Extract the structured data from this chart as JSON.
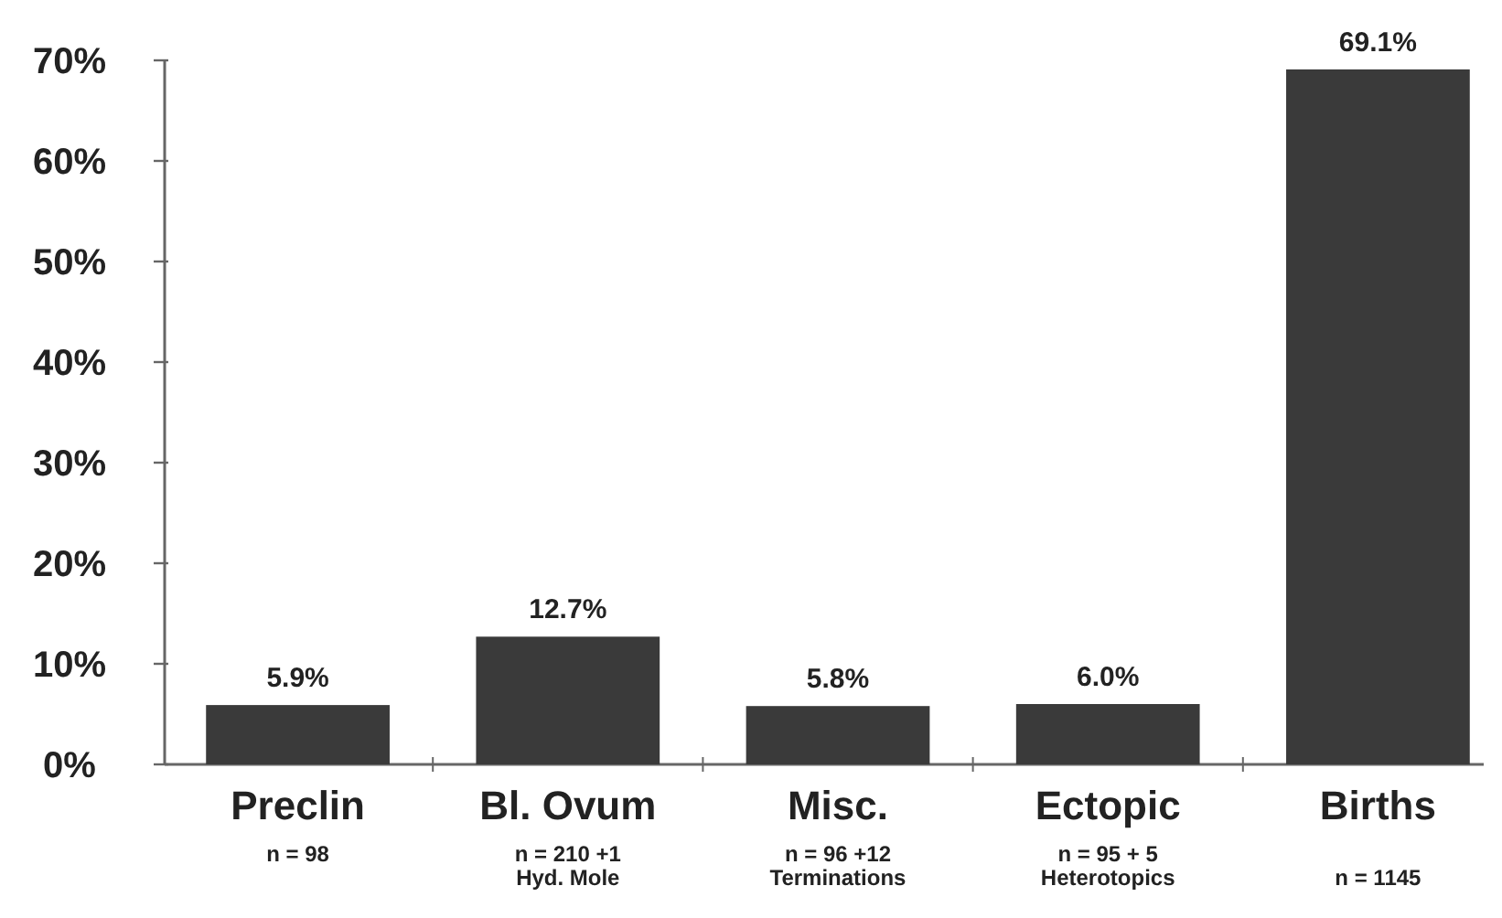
{
  "chart_data": {
    "type": "bar",
    "categories": [
      "Preclin\nn = 98",
      "Bl. Ovum\nn = 210 +1\nHyd. Mole",
      "Misc.\nn = 96 +12\nTerminations",
      "Ectopic\nn = 95 + 5\nHeterotopics",
      "Births\n\nn = 1145"
    ],
    "values": [
      5.9,
      12.7,
      5.8,
      6.0,
      69.1
    ],
    "value_labels": [
      "5.9%",
      "12.7%",
      "5.8%",
      "6.0%",
      "69.1%"
    ],
    "color": "#3a3a3a",
    "ylim": [
      0,
      70
    ],
    "yticks": [
      {
        "value": 0,
        "label": "0%"
      },
      {
        "value": 10,
        "label": "10%"
      },
      {
        "value": 20,
        "label": "20%"
      },
      {
        "value": 30,
        "label": "30%"
      },
      {
        "value": 40,
        "label": "40%"
      },
      {
        "value": 50,
        "label": "50%"
      },
      {
        "value": 60,
        "label": "60%"
      },
      {
        "value": 70,
        "label": "70%"
      }
    ],
    "grid": false
  }
}
